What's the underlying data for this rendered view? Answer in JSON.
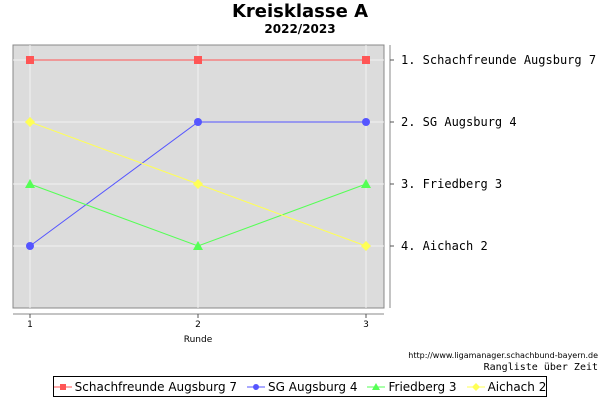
{
  "header": {
    "title": "Kreisklasse A",
    "subtitle": "2022/2023"
  },
  "footer": {
    "url": "http://www.ligamanager.schachbund-bayern.de",
    "caption": "Rangliste über Zeit"
  },
  "chart_data": {
    "type": "line",
    "title": "Kreisklasse A",
    "subtitle": "2022/2023",
    "xlabel": "Runde",
    "ylabel": "",
    "x": [
      1,
      2,
      3
    ],
    "xlim": [
      1,
      3
    ],
    "ylim": [
      1,
      5
    ],
    "y_inverted": true,
    "grid": true,
    "legend_position": "bottom",
    "right_axis_labels": [
      "1. Schachfreunde Augsburg 7",
      "2. SG Augsburg 4",
      "3. Friedberg 3",
      "4. Aichach 2"
    ],
    "series": [
      {
        "name": "Schachfreunde Augsburg 7",
        "values": [
          1,
          1,
          1
        ],
        "color": "#ff5555",
        "marker": "square"
      },
      {
        "name": "SG Augsburg 4",
        "values": [
          4,
          2,
          2
        ],
        "color": "#5555ff",
        "marker": "circle"
      },
      {
        "name": "Friedberg 3",
        "values": [
          3,
          4,
          3
        ],
        "color": "#55ff55",
        "marker": "triangle"
      },
      {
        "name": "Aichach 2",
        "values": [
          2,
          3,
          4
        ],
        "color": "#ffff55",
        "marker": "diamond"
      }
    ]
  }
}
